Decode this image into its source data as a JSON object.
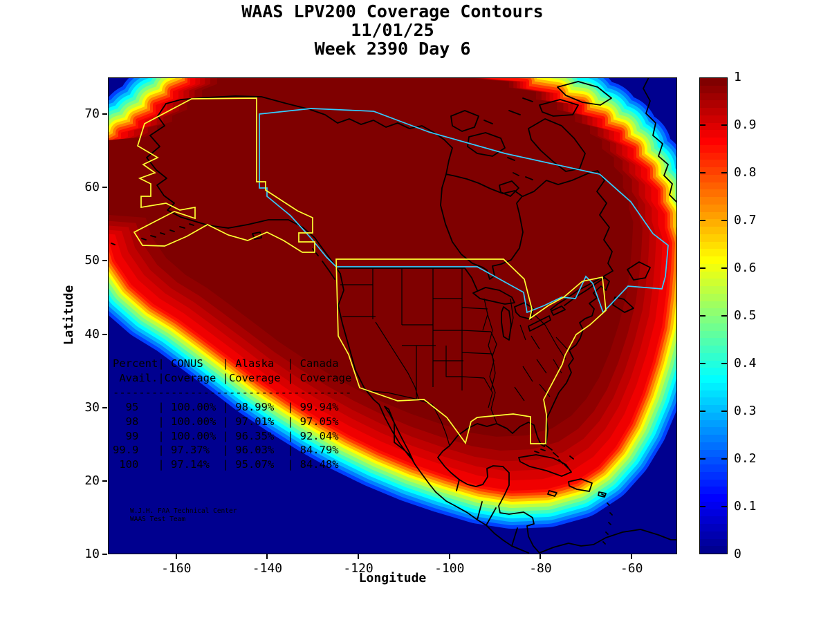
{
  "title": {
    "line1": "WAAS LPV200 Coverage Contours",
    "line2": "11/01/25",
    "line3": "Week 2390 Day 6"
  },
  "axes": {
    "x": {
      "label": "Longitude",
      "range": [
        -175,
        -50
      ],
      "ticks": [
        -160,
        -140,
        -120,
        -100,
        -80,
        -60
      ],
      "tick_labels": [
        "-160",
        "-140",
        "-120",
        "-100",
        "-80",
        "-60"
      ]
    },
    "y": {
      "label": "Latitude",
      "range": [
        10,
        75
      ],
      "ticks": [
        10,
        20,
        30,
        40,
        50,
        60,
        70
      ],
      "tick_labels": [
        "10",
        "20",
        "30",
        "40",
        "50",
        "60",
        "70"
      ]
    }
  },
  "colorbar": {
    "min": 0,
    "max": 1,
    "ticks": [
      0,
      0.1,
      0.2,
      0.3,
      0.4,
      0.5,
      0.6,
      0.7,
      0.8,
      0.9,
      1
    ],
    "tick_labels": [
      "0",
      "0.1",
      "0.2",
      "0.3",
      "0.4",
      "0.5",
      "0.6",
      "0.7",
      "0.8",
      "0.9",
      "1"
    ],
    "colors": [
      "#000090",
      "#00009F",
      "#0000AF",
      "#0000BF",
      "#0000CF",
      "#0000DF",
      "#0000EF",
      "#0000FF",
      "#0010FF",
      "#0020FF",
      "#0030FF",
      "#0040FF",
      "#0050FF",
      "#0060FF",
      "#0070FF",
      "#0080FF",
      "#0090FF",
      "#009FFF",
      "#00AFFF",
      "#00BFFF",
      "#00CFFF",
      "#00DFFF",
      "#00EFFF",
      "#00FFFF",
      "#10FFEF",
      "#20FFDF",
      "#30FFCF",
      "#40FFBF",
      "#50FFAF",
      "#60FF9F",
      "#70FF8F",
      "#80FF80",
      "#90FF70",
      "#9FFF60",
      "#AFFF50",
      "#BFFF40",
      "#CFFF30",
      "#DFFF20",
      "#EFFF10",
      "#FFFF00",
      "#FFEF00",
      "#FFDF00",
      "#FFCF00",
      "#FFBF00",
      "#FFAF00",
      "#FF9F00",
      "#FF8F00",
      "#FF8000",
      "#FF7000",
      "#FF6000",
      "#FF5000",
      "#FF4000",
      "#FF3000",
      "#FF2000",
      "#FF1000",
      "#FF0000",
      "#EF0000",
      "#DF0000",
      "#CF0000",
      "#BF0000",
      "#AF0000",
      "#9F0000",
      "#8F0000",
      "#800000"
    ]
  },
  "coverage_table": {
    "columns": [
      "Percent Avail.",
      "CONUS Coverage",
      "Alaska Coverage",
      "Canada Coverage"
    ],
    "rows": [
      [
        "95",
        "100.00%",
        "98.99%",
        "99.94%"
      ],
      [
        "98",
        "100.00%",
        "97.01%",
        "97.05%"
      ],
      [
        "99",
        "100.00%",
        "96.35%",
        "92.04%"
      ],
      [
        "99.9",
        "97.37%",
        "96.03%",
        "84.79%"
      ],
      [
        "100",
        "97.14%",
        "95.07%",
        "84.48%"
      ]
    ],
    "lines": [
      "Percent| CONUS   | Alaska  | Canada",
      " Avail.|Coverage |Coverage | Coverage",
      "-------------------------------------",
      "  95   | 100.00% | 98.99%  | 99.94%",
      "  98   | 100.00% | 97.01%  | 97.05%",
      "  99   | 100.00% | 96.35%  | 92.04%",
      "99.9   | 97.37%  | 96.03%  | 84.79%",
      " 100   | 97.14%  | 95.07%  | 84.48%"
    ]
  },
  "credits": {
    "line1": "W.J.H. FAA Technical Center",
    "line2": "WAAS Test Team"
  },
  "chart_data": {
    "type": "filled-contour-map",
    "title": "WAAS LPV200 Coverage Contours",
    "date": "11/01/25",
    "gps_week": 2390,
    "gps_day": 6,
    "region": "North America",
    "xlabel": "Longitude",
    "ylabel": "Latitude",
    "xlim": [
      -175,
      -50
    ],
    "ylim": [
      10,
      75
    ],
    "colorbar_range": [
      0,
      1
    ],
    "colormap": "jet",
    "colors": {
      "ocean": "#00008F",
      "coastline": "#000000",
      "state_lines": "#000000",
      "service_boundary": "#FFFF33",
      "canada_boundary": "#33CCFF",
      "table_text": "#000000"
    },
    "blob_fill": "#F00000",
    "edge_bands": [
      "#0040FF",
      "#0080FF",
      "#00BFFF",
      "#00FFFF",
      "#40FFBF",
      "#80FF80",
      "#BFFF40",
      "#FFFF00",
      "#FFBF00",
      "#FF8000",
      "#FF4000",
      "#FF1000"
    ],
    "interior_levels": [
      {
        "level": 0.95,
        "color": "#D80000"
      },
      {
        "level": 0.97,
        "color": "#C00000"
      },
      {
        "level": 0.98,
        "color": "#A80000"
      },
      {
        "level": 0.99,
        "color": "#900000"
      },
      {
        "level": 1.0,
        "color": "#7F0000"
      }
    ],
    "coverage_summary": {
      "availability_levels_percent": [
        95,
        98,
        99,
        99.9,
        100
      ],
      "conus_coverage_percent": [
        100.0,
        100.0,
        100.0,
        97.37,
        97.14
      ],
      "alaska_coverage_percent": [
        98.99,
        97.01,
        96.35,
        96.03,
        95.07
      ],
      "canada_coverage_percent": [
        99.94,
        97.05,
        92.04,
        84.79,
        84.48
      ]
    }
  }
}
